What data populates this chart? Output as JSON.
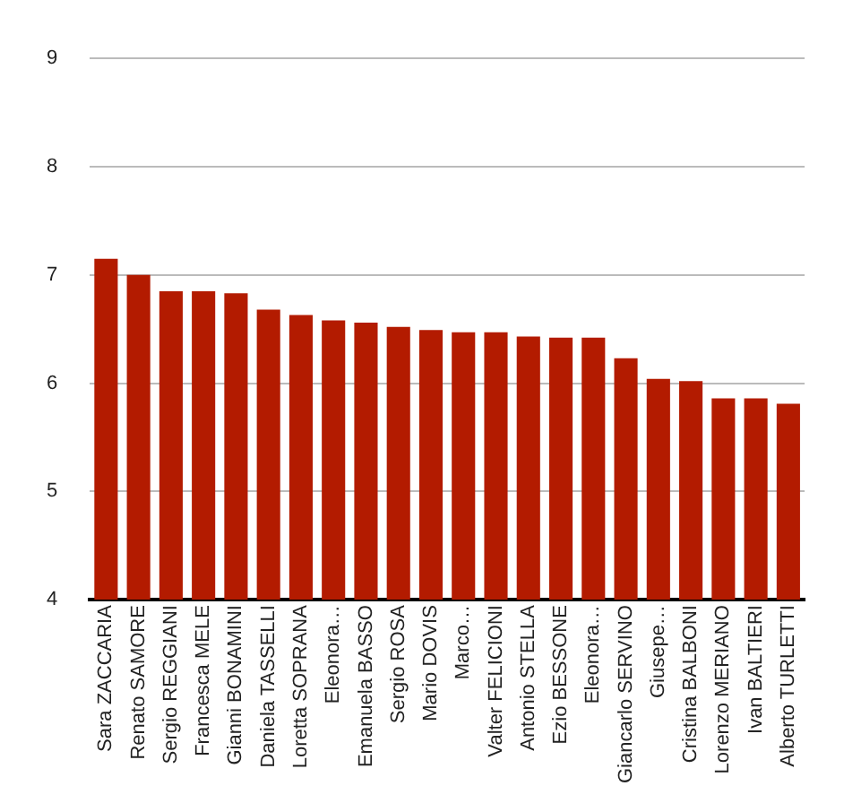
{
  "chart_data": {
    "type": "bar",
    "categories": [
      "Sara ZACCARIA",
      "Renato SAMORE",
      "Sergio REGGIANI",
      "Francesca MELE",
      "Gianni BONAMINI",
      "Daniela TASSELLI",
      "Loretta SOPRANA",
      "Eleonora…",
      "Emanuela BASSO",
      "Sergio ROSA",
      "Mario DOVIS",
      "Marco…",
      "Valter FELICIONI",
      "Antonio STELLA",
      "Ezio BESSONE",
      "Eleonora…",
      "Giancarlo SERVINO",
      "Giusepe…",
      "Cristina BALBONI",
      "Lorenzo MERIANO",
      "Ivan BALTIERI",
      "Alberto TURLETTI"
    ],
    "values": [
      7.15,
      7.0,
      6.85,
      6.85,
      6.83,
      6.68,
      6.63,
      6.58,
      6.56,
      6.52,
      6.49,
      6.47,
      6.47,
      6.43,
      6.42,
      6.42,
      6.23,
      6.04,
      6.02,
      5.86,
      5.86,
      5.81
    ],
    "color": "#b31b00",
    "ylim": [
      4,
      9
    ],
    "yticks": [
      4,
      5,
      6,
      7,
      8,
      9
    ],
    "grid": "y"
  }
}
